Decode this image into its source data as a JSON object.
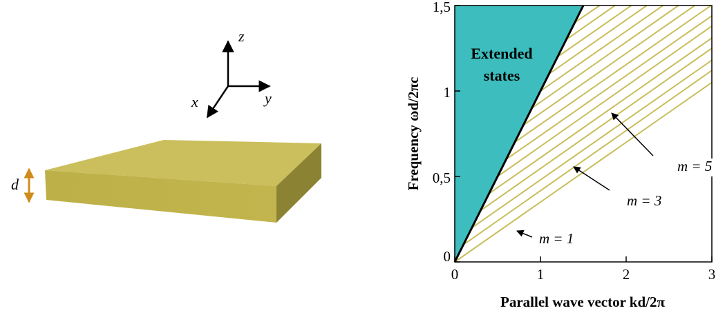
{
  "diagram": {
    "axes": {
      "z": "z",
      "x": "x",
      "y": "y"
    },
    "thickness": "d"
  },
  "chart_data": {
    "type": "line",
    "xlabel": "Parallel wave vector kd/2π",
    "ylabel": "Frequency ωd/2πc",
    "xlim": [
      0,
      3
    ],
    "ylim": [
      0,
      1.5
    ],
    "xticks": [
      0,
      1,
      2,
      3
    ],
    "yticks": [
      0,
      {
        "value": 0.5,
        "label": "0,5"
      },
      1,
      {
        "value": 1.5,
        "label": "1,5"
      }
    ],
    "light_line": {
      "x": [
        0,
        1.5
      ],
      "values": [
        0,
        1.5
      ],
      "color": "#000000",
      "fill_color": "#3dbdbd"
    },
    "series": [
      {
        "color": "#c9bd5a",
        "x": [
          0,
          3
        ],
        "values": [
          0,
          1.05
        ]
      },
      {
        "color": "#c9bd5a",
        "x": [
          0.1,
          3
        ],
        "values": [
          0.1,
          1.12
        ]
      },
      {
        "color": "#c9bd5a",
        "x": [
          0.2,
          3
        ],
        "values": [
          0.2,
          1.18
        ]
      },
      {
        "color": "#c9bd5a",
        "x": [
          0.3,
          3
        ],
        "values": [
          0.3,
          1.25
        ]
      },
      {
        "color": "#c9bd5a",
        "x": [
          0.4,
          3
        ],
        "values": [
          0.4,
          1.31
        ]
      },
      {
        "color": "#c9bd5a",
        "x": [
          0.5,
          3
        ],
        "values": [
          0.5,
          1.38
        ]
      },
      {
        "color": "#c9bd5a",
        "x": [
          0.6,
          3
        ],
        "values": [
          0.6,
          1.44
        ]
      },
      {
        "color": "#c9bd5a",
        "x": [
          0.7,
          2.99
        ],
        "values": [
          0.7,
          1.5
        ]
      },
      {
        "color": "#c9bd5a",
        "x": [
          0.8,
          2.8
        ],
        "values": [
          0.8,
          1.5
        ]
      },
      {
        "color": "#c9bd5a",
        "x": [
          0.9,
          2.61
        ],
        "values": [
          0.9,
          1.5
        ]
      },
      {
        "color": "#c9bd5a",
        "x": [
          1.0,
          2.43
        ],
        "values": [
          1.0,
          1.5
        ]
      },
      {
        "color": "#c9bd5a",
        "x": [
          1.1,
          2.24
        ],
        "values": [
          1.1,
          1.5
        ]
      },
      {
        "color": "#c9bd5a",
        "x": [
          1.2,
          2.06
        ],
        "values": [
          1.2,
          1.5
        ]
      },
      {
        "color": "#c9bd5a",
        "x": [
          1.3,
          1.87
        ],
        "values": [
          1.3,
          1.5
        ]
      },
      {
        "color": "#c9bd5a",
        "x": [
          1.4,
          1.69
        ],
        "values": [
          1.4,
          1.5
        ]
      }
    ],
    "annotations": {
      "region": [
        "Extended",
        "states"
      ],
      "m1": "m = 1",
      "m3": "m = 3",
      "m5": "m = 5"
    }
  }
}
